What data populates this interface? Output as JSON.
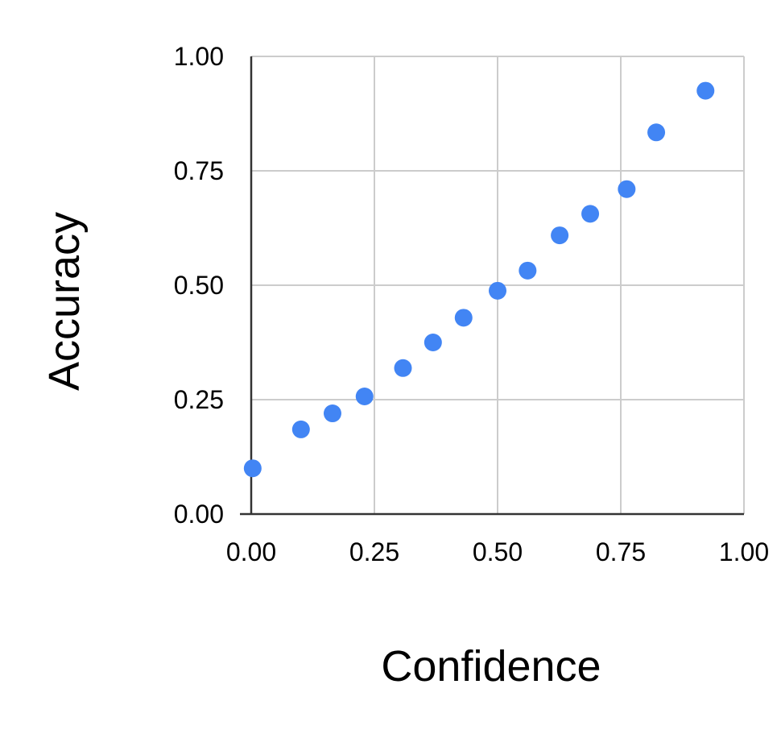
{
  "chart_data": {
    "type": "scatter",
    "title": "",
    "xlabel": "Confidence",
    "ylabel": "Accuracy",
    "xlim": [
      0,
      1
    ],
    "ylim": [
      0,
      1
    ],
    "grid": true,
    "legend": "none",
    "x_ticks": [
      "0.00",
      "0.25",
      "0.50",
      "0.75",
      "1.00"
    ],
    "y_ticks": [
      "0.00",
      "0.25",
      "0.50",
      "0.75",
      "1.00"
    ],
    "x_tick_values": [
      0,
      0.25,
      0.5,
      0.75,
      1
    ],
    "y_tick_values": [
      0,
      0.25,
      0.5,
      0.75,
      1
    ],
    "marker_color": "#4285F4",
    "grid_color": "#cccccc",
    "series": [
      {
        "points": [
          {
            "x": 0.003,
            "y": 0.1
          },
          {
            "x": 0.101,
            "y": 0.185
          },
          {
            "x": 0.165,
            "y": 0.22
          },
          {
            "x": 0.23,
            "y": 0.257
          },
          {
            "x": 0.308,
            "y": 0.319
          },
          {
            "x": 0.369,
            "y": 0.375
          },
          {
            "x": 0.431,
            "y": 0.429
          },
          {
            "x": 0.5,
            "y": 0.488
          },
          {
            "x": 0.561,
            "y": 0.532
          },
          {
            "x": 0.626,
            "y": 0.609
          },
          {
            "x": 0.688,
            "y": 0.656
          },
          {
            "x": 0.762,
            "y": 0.71
          },
          {
            "x": 0.822,
            "y": 0.834
          },
          {
            "x": 0.922,
            "y": 0.925
          }
        ]
      }
    ]
  }
}
